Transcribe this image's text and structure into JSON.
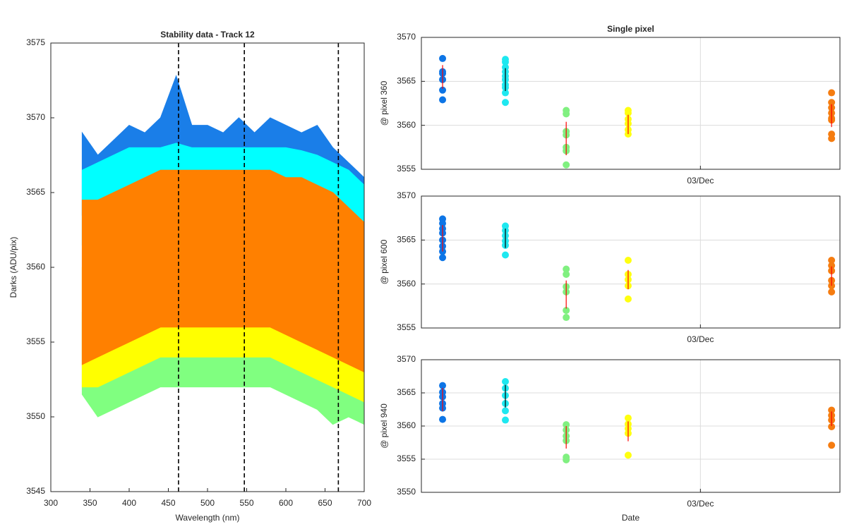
{
  "chart_data": [
    {
      "type": "area",
      "title": "Stability data - Track 12",
      "xlabel": "Wavelength (nm)",
      "ylabel": "Darks (ADU/pix)",
      "xlim": [
        300,
        700
      ],
      "ylim": [
        3545,
        3575
      ],
      "xticks": [
        300,
        350,
        400,
        450,
        500,
        550,
        600,
        650,
        700
      ],
      "yticks": [
        3545,
        3550,
        3555,
        3560,
        3565,
        3570,
        3575
      ],
      "vlines": [
        463,
        547,
        667
      ],
      "x": [
        340,
        360,
        380,
        400,
        420,
        440,
        460,
        480,
        500,
        520,
        540,
        560,
        580,
        600,
        620,
        640,
        660,
        680,
        700
      ],
      "series": [
        {
          "color": "#1a7ee8",
          "upper": [
            3569,
            3567.5,
            3568.5,
            3569.5,
            3569,
            3570,
            3572.8,
            3569.5,
            3569.5,
            3569,
            3570,
            3569,
            3570,
            3569.5,
            3569,
            3569.5,
            3568,
            3567,
            3566
          ],
          "lower": [
            3563.5,
            3564,
            3564.5,
            3565,
            3565,
            3565,
            3565,
            3565,
            3565,
            3565,
            3565,
            3565,
            3565,
            3565,
            3565,
            3564.5,
            3564,
            3563.5,
            3562.5
          ]
        },
        {
          "color": "#00ffff",
          "upper": [
            3566.5,
            3567,
            3567.5,
            3568,
            3568,
            3568,
            3568.3,
            3568,
            3568,
            3568,
            3568,
            3568,
            3568,
            3568,
            3567.8,
            3567.5,
            3567,
            3566.5,
            3565.5
          ],
          "lower": [
            3561.5,
            3562,
            3562.5,
            3563,
            3563,
            3563,
            3563,
            3563,
            3563,
            3563,
            3563,
            3563,
            3563,
            3563,
            3562.8,
            3562.5,
            3562,
            3561.5,
            3560.5
          ]
        },
        {
          "color": "#80ff80",
          "upper": [
            3557,
            3558,
            3558.5,
            3559,
            3559,
            3559,
            3559,
            3559,
            3559,
            3559,
            3559,
            3559,
            3559,
            3559,
            3558.8,
            3558.5,
            3558,
            3557,
            3556
          ],
          "lower": [
            3551.5,
            3550,
            3550.5,
            3551,
            3551.5,
            3552,
            3552,
            3552,
            3552,
            3552,
            3552,
            3552,
            3552,
            3551.5,
            3551,
            3550.5,
            3549.5,
            3550,
            3549.5
          ]
        },
        {
          "color": "#ffff00",
          "upper": [
            3560,
            3561,
            3561.5,
            3562,
            3562,
            3562.5,
            3562.5,
            3562.5,
            3562.5,
            3562.5,
            3562.5,
            3562.5,
            3562.5,
            3562,
            3562,
            3561.5,
            3561,
            3560,
            3559
          ],
          "lower": [
            3552,
            3552,
            3552.5,
            3553,
            3553.5,
            3554,
            3554,
            3554,
            3554,
            3554,
            3554,
            3554,
            3554,
            3553.5,
            3553,
            3552.5,
            3552,
            3551.5,
            3551
          ]
        },
        {
          "color": "#ff8000",
          "upper": [
            3564.5,
            3564.5,
            3565,
            3565.5,
            3566,
            3566.5,
            3566.5,
            3566.5,
            3566.5,
            3566.5,
            3566.5,
            3566.5,
            3566.5,
            3566,
            3566,
            3565.5,
            3565,
            3564,
            3563
          ],
          "lower": [
            3553.5,
            3554,
            3554.5,
            3555,
            3555.5,
            3556,
            3556,
            3556,
            3556,
            3556,
            3556,
            3556,
            3556,
            3555.5,
            3555,
            3554.5,
            3554,
            3553.5,
            3553
          ]
        }
      ]
    },
    {
      "type": "scatter",
      "title": "Single pixel",
      "ylabel": "@ pixel 360",
      "grid": true,
      "xlim": [
        2,
        3.5
      ],
      "ylim": [
        3555,
        3570
      ],
      "xticks": [
        {
          "value": 3,
          "label": "03/Dec"
        }
      ],
      "yticks": [
        3555,
        3560,
        3565,
        3570
      ],
      "series": [
        {
          "color": "#0d75e6",
          "x": 2.076,
          "values": [
            3567.6,
            3566.1,
            3565.9,
            3565.2,
            3564.0,
            3562.9
          ],
          "mean": 3565.5,
          "err": 1.35,
          "errcolor": "#ff0000"
        },
        {
          "color": "#1ee8f0",
          "x": 2.301,
          "values": [
            3567.5,
            3567.2,
            3566.6,
            3566.1,
            3565.6,
            3565.2,
            3564.6,
            3564.3,
            3563.7,
            3562.6
          ],
          "mean": 3565.2,
          "err": 1.3,
          "errcolor": "#000000"
        },
        {
          "color": "#80f080",
          "x": 2.519,
          "values": [
            3561.7,
            3561.3,
            3559.3,
            3558.9,
            3557.5,
            3557.1,
            3555.5
          ],
          "mean": 3558.5,
          "err": 1.9,
          "errcolor": "#ff0000"
        },
        {
          "color": "#ffff10",
          "x": 2.741,
          "values": [
            3561.7,
            3561.4,
            3560.7,
            3560.2,
            3559.5,
            3559.0
          ],
          "mean": 3560.1,
          "err": 1.1,
          "errcolor": "#ff0000"
        },
        {
          "color": "#f57c10",
          "x": 3.47,
          "values": [
            3563.7,
            3562.6,
            3562.0,
            3561.4,
            3560.8,
            3560.6,
            3559.0,
            3558.5
          ],
          "mean": 3561.1,
          "err": 1.3,
          "errcolor": "#ff0000"
        }
      ]
    },
    {
      "type": "scatter",
      "ylabel": "@ pixel 600",
      "grid": true,
      "xlim": [
        2,
        3.5
      ],
      "ylim": [
        3555,
        3570
      ],
      "xticks": [
        {
          "value": 3,
          "label": "03/Dec"
        }
      ],
      "yticks": [
        3555,
        3560,
        3565,
        3570
      ],
      "series": [
        {
          "color": "#0d75e6",
          "x": 2.076,
          "values": [
            3567.4,
            3566.9,
            3566.3,
            3565.8,
            3565.0,
            3564.3,
            3563.7,
            3563.0
          ],
          "mean": 3565.2,
          "err": 1.5,
          "errcolor": "#ff0000"
        },
        {
          "color": "#1ee8f0",
          "x": 2.301,
          "values": [
            3566.6,
            3566.1,
            3565.5,
            3564.9,
            3564.4,
            3563.3
          ],
          "mean": 3565.2,
          "err": 1.1,
          "errcolor": "#000000"
        },
        {
          "color": "#80f080",
          "x": 2.519,
          "values": [
            3561.7,
            3561.1,
            3559.7,
            3559.1,
            3557.0,
            3556.2
          ],
          "mean": 3558.8,
          "err": 1.6,
          "errcolor": "#ff0000"
        },
        {
          "color": "#ffff10",
          "x": 2.741,
          "values": [
            3562.7,
            3561.1,
            3560.5,
            3559.8,
            3558.3
          ],
          "mean": 3560.5,
          "err": 1.1,
          "errcolor": "#ff0000"
        },
        {
          "color": "#f57c10",
          "x": 3.47,
          "values": [
            3562.7,
            3562.1,
            3561.5,
            3560.4,
            3559.8,
            3559.1
          ],
          "mean": 3560.9,
          "err": 1.1,
          "errcolor": "#ff0000"
        }
      ]
    },
    {
      "type": "scatter",
      "ylabel": "@ pixel 940",
      "xlabel": "Date",
      "grid": true,
      "xlim": [
        2,
        3.5
      ],
      "ylim": [
        3550,
        3570
      ],
      "xticks": [
        {
          "value": 3,
          "label": "03/Dec"
        }
      ],
      "yticks": [
        3550,
        3555,
        3560,
        3565,
        3570
      ],
      "series": [
        {
          "color": "#0d75e6",
          "x": 2.076,
          "values": [
            3566.1,
            3565.1,
            3564.4,
            3563.4,
            3562.7,
            3561.0
          ],
          "mean": 3564.0,
          "err": 1.75,
          "errcolor": "#ff0000"
        },
        {
          "color": "#1ee8f0",
          "x": 2.301,
          "values": [
            3566.7,
            3565.7,
            3564.6,
            3563.4,
            3562.3,
            3560.9
          ],
          "mean": 3564.5,
          "err": 1.7,
          "errcolor": "#000000"
        },
        {
          "color": "#80f080",
          "x": 2.519,
          "values": [
            3560.2,
            3559.4,
            3558.5,
            3557.8,
            3555.3,
            3554.9
          ],
          "mean": 3558.3,
          "err": 1.7,
          "errcolor": "#ff0000"
        },
        {
          "color": "#ffff10",
          "x": 2.741,
          "values": [
            3561.2,
            3560.3,
            3559.6,
            3558.9,
            3555.6
          ],
          "mean": 3559.2,
          "err": 1.5,
          "errcolor": "#ff0000"
        },
        {
          "color": "#f57c10",
          "x": 3.47,
          "values": [
            3562.4,
            3561.6,
            3560.9,
            3559.9,
            3557.1
          ],
          "mean": 3561.1,
          "err": 1.1,
          "errcolor": "#ff0000"
        }
      ]
    }
  ]
}
